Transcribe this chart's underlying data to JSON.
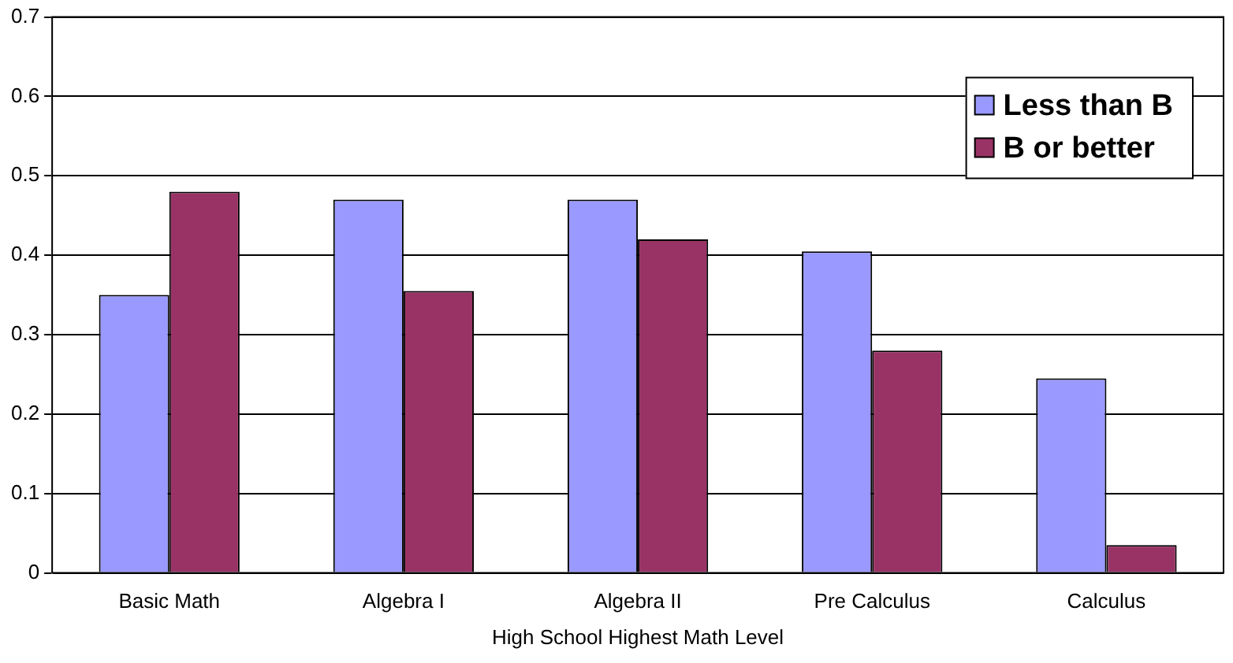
{
  "chart_data": {
    "type": "bar",
    "xlabel": "High School Highest Math Level",
    "categories": [
      "Basic Math",
      "Algebra I",
      "Algebra II",
      "Pre Calculus",
      "Calculus"
    ],
    "series": [
      {
        "name": "Less than B",
        "color": "#9999ff",
        "values": [
          0.35,
          0.47,
          0.47,
          0.405,
          0.245
        ]
      },
      {
        "name": "B or better",
        "color": "#993366",
        "values": [
          0.48,
          0.355,
          0.42,
          0.28,
          0.035
        ]
      }
    ],
    "ylim": [
      0,
      0.7
    ],
    "yticks": [
      0,
      0.1,
      0.2,
      0.3,
      0.4,
      0.5,
      0.6,
      0.7
    ],
    "grid": "y",
    "legend": "top right"
  }
}
